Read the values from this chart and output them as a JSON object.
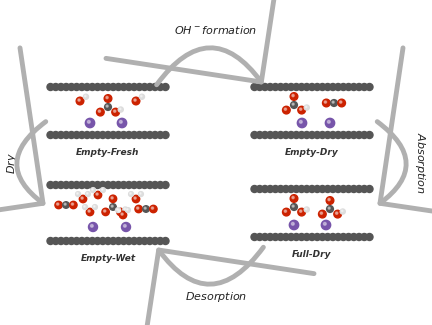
{
  "bg_color": "#f5f5f5",
  "title_top": "OH⁻ formation",
  "title_bottom": "Desorption",
  "label_left": "Dry",
  "label_right": "Absorption",
  "labels": [
    "Empty-Fresh",
    "Empty-Dry",
    "Full-Dry",
    "Empty-Wet"
  ],
  "graphene_color": "#555555",
  "atom_colors": {
    "C": "#555555",
    "O": "#cc2200",
    "H": "#dddddd",
    "K": "#7755aa"
  },
  "arrow_color": "#aaaaaa",
  "arrow_head_color": "#888888"
}
